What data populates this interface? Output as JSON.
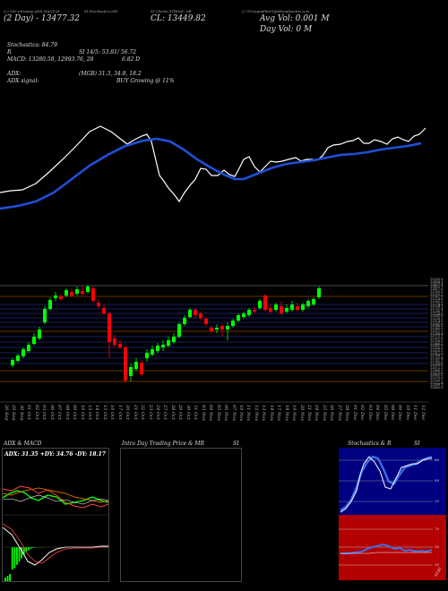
{
  "header": {
    "line1a": "(2) 100 Intraday ADX,MACD,R",
    "line1b": "SI,Stochastics,MR",
    "line1c": "SI Charts STRDAY_GB",
    "line1d": "(2.55%apmilbo01@Munafasutra.com",
    "line2a": "(2 Day) - 13477.32",
    "line2b": "CL: 13449.82",
    "line2c": "Avg Vol: 0.001 M",
    "line3": "Day Vol: 0   M"
  },
  "indicators": {
    "stoch_label": "Stochastics: 84.79",
    "rsi_label": "R",
    "rsi_value": "SI 14/5: 53.81/ 56.72",
    "macd_label": "MACD: 13280.58,  12993.76,  28",
    "macd_value": "6.82  D",
    "adx_label": "ADX:",
    "adx_value": "(MGB) 31.3,  34.8,  18.2",
    "adx_signal_label": "ADX  signal:",
    "adx_signal_value": "BUY Growing @ 11%"
  },
  "dates": [
    "26 Sep",
    "29 Sep",
    "30 Sep",
    "01 Oct",
    "02 Oct",
    "03 Oct",
    "06 Oct",
    "07 Oct",
    "08 Oct",
    "09 Oct",
    "10 Oct",
    "13 Oct",
    "14 Oct",
    "15 Oct",
    "16 Oct",
    "17 Oct",
    "20 Oct",
    "21 Oct",
    "22 Oct",
    "23 Oct",
    "24 Oct",
    "27 Oct",
    "28 Oct",
    "29 Oct",
    "30 Oct",
    "31 Oct",
    "03 Nov",
    "04 Nov",
    "05 Nov",
    "06 Nov",
    "07 Nov",
    "10 Nov",
    "11 Nov",
    "12 Nov",
    "13 Nov",
    "14 Nov",
    "17 Nov",
    "18 Nov",
    "19 Nov",
    "20 Nov",
    "21 Nov",
    "24 Nov",
    "25 Nov",
    "26 Nov",
    "27 Nov",
    "28 Nov",
    "01 Dec",
    "02 Dec",
    "03 Dec",
    "04 Dec",
    "05 Dec",
    "08 Dec",
    "09 Dec",
    "10 Dec",
    "11 Dec",
    "12 Dec"
  ],
  "price_levels": [
    "13530.8",
    "13484.5",
    "13457.4",
    "13432.1",
    "13417.6",
    "13395.8",
    "13371.2",
    "13347.9",
    "13324.6",
    "13301.3",
    "13278.0",
    "13254.7",
    "13231.4",
    "13208.1",
    "13184.8",
    "13161.5",
    "13138.2",
    "13114.9",
    "13091.6",
    "13068.3",
    "13045.0",
    "13021.7",
    "12998.4",
    "12975.1",
    "12951.8",
    "12928.5",
    "12905.2",
    "12881.9",
    "12858.6",
    "12835.3",
    "12812.0",
    "12788.7",
    "12765.4",
    "12742.1",
    "12718.8",
    "12695.5",
    "12672.2",
    "12648.9",
    "12625.6",
    "12602.3",
    "12579.0",
    "12555.7",
    "12532.4",
    "12509.1",
    "12485.8"
  ],
  "panels": {
    "adx_title": "ADX  & MACD",
    "adx_readout": "ADX: 31.35  +DY: 34.76  -DY: 18.17",
    "intraday_title": "Intra  Day Trading Price  & MR",
    "intraday_title2": "SI",
    "stoch_title": "Stochastics & R",
    "stoch_title2": "SI",
    "stoch_levels": [
      "80",
      "50",
      "20"
    ],
    "rsi_levels": [
      "70",
      "50",
      "30"
    ],
    "rsi_badge": "53.81"
  },
  "colors": {
    "up": "#00ff00",
    "down": "#ff0000",
    "ma": "#1e4fd8",
    "orange": "#cc6600",
    "blue_panel": "#000080",
    "red_panel": "#b30000"
  }
}
